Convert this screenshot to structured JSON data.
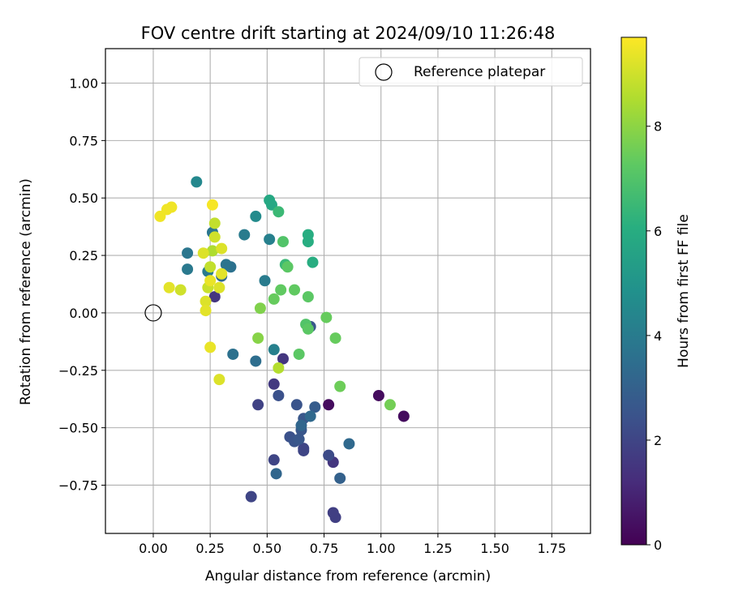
{
  "chart_data": {
    "type": "scatter",
    "title": "FOV centre drift starting at 2024/09/10 11:26:48",
    "xlabel": "Angular distance from reference (arcmin)",
    "ylabel": "Rotation from reference (arcmin)",
    "xlim": [
      -0.21,
      1.92
    ],
    "ylim": [
      -0.96,
      1.15
    ],
    "xticks": [
      0.0,
      0.25,
      0.5,
      0.75,
      1.0,
      1.25,
      1.5,
      1.75
    ],
    "xtick_labels": [
      "0.00",
      "0.25",
      "0.50",
      "0.75",
      "1.00",
      "1.25",
      "1.50",
      "1.75"
    ],
    "yticks": [
      -0.75,
      -0.5,
      -0.25,
      0.0,
      0.25,
      0.5,
      0.75,
      1.0
    ],
    "ytick_labels": [
      "−0.75",
      "−0.50",
      "−0.25",
      "0.00",
      "0.25",
      "0.50",
      "0.75",
      "1.00"
    ],
    "grid": true,
    "legend": {
      "placement": "top-right",
      "entries": [
        "Reference platepar"
      ]
    },
    "reference_point": {
      "name": "Reference platepar",
      "x": 0.0,
      "y": 0.0
    },
    "colorbar": {
      "label": "Hours from first FF file",
      "colormap": "viridis",
      "range": [
        0,
        9.7
      ],
      "ticks": [
        0,
        2,
        4,
        6,
        8
      ],
      "tick_labels": [
        "0",
        "2",
        "4",
        "6",
        "8"
      ]
    },
    "points": [
      {
        "x": 0.77,
        "y": -0.4,
        "c": 0.3
      },
      {
        "x": 0.99,
        "y": -0.36,
        "c": 0.3
      },
      {
        "x": 1.1,
        "y": -0.45,
        "c": 0.3
      },
      {
        "x": 0.79,
        "y": -0.65,
        "c": 1.5
      },
      {
        "x": 0.57,
        "y": -0.2,
        "c": 1.5
      },
      {
        "x": 0.27,
        "y": 0.07,
        "c": 1.5
      },
      {
        "x": 0.53,
        "y": -0.31,
        "c": 1.6
      },
      {
        "x": 0.8,
        "y": -0.89,
        "c": 1.8
      },
      {
        "x": 0.79,
        "y": -0.87,
        "c": 1.8
      },
      {
        "x": 0.46,
        "y": -0.4,
        "c": 1.9
      },
      {
        "x": 0.43,
        "y": -0.8,
        "c": 2.0
      },
      {
        "x": 0.53,
        "y": -0.64,
        "c": 2.0
      },
      {
        "x": 0.66,
        "y": -0.6,
        "c": 2.0
      },
      {
        "x": 0.66,
        "y": -0.59,
        "c": 2.0
      },
      {
        "x": 0.77,
        "y": -0.62,
        "c": 2.2
      },
      {
        "x": 0.55,
        "y": -0.36,
        "c": 2.4
      },
      {
        "x": 0.6,
        "y": -0.54,
        "c": 2.4
      },
      {
        "x": 0.62,
        "y": -0.56,
        "c": 2.5
      },
      {
        "x": 0.63,
        "y": -0.4,
        "c": 2.5
      },
      {
        "x": 0.64,
        "y": -0.55,
        "c": 2.6
      },
      {
        "x": 0.65,
        "y": -0.51,
        "c": 2.6
      },
      {
        "x": 0.66,
        "y": -0.46,
        "c": 2.6
      },
      {
        "x": 0.69,
        "y": -0.06,
        "c": 2.6
      },
      {
        "x": 0.71,
        "y": -0.41,
        "c": 2.8
      },
      {
        "x": 0.82,
        "y": -0.72,
        "c": 3.0
      },
      {
        "x": 0.54,
        "y": -0.7,
        "c": 3.2
      },
      {
        "x": 0.65,
        "y": -0.49,
        "c": 3.2
      },
      {
        "x": 0.69,
        "y": -0.45,
        "c": 3.3
      },
      {
        "x": 0.86,
        "y": -0.57,
        "c": 3.3
      },
      {
        "x": 0.3,
        "y": 0.16,
        "c": 3.3
      },
      {
        "x": 0.45,
        "y": -0.21,
        "c": 3.5
      },
      {
        "x": 0.35,
        "y": -0.18,
        "c": 3.6
      },
      {
        "x": 0.34,
        "y": 0.2,
        "c": 3.6
      },
      {
        "x": 0.32,
        "y": 0.21,
        "c": 3.7
      },
      {
        "x": 0.26,
        "y": 0.35,
        "c": 3.8
      },
      {
        "x": 0.15,
        "y": 0.26,
        "c": 3.8
      },
      {
        "x": 0.15,
        "y": 0.19,
        "c": 3.9
      },
      {
        "x": 0.24,
        "y": 0.18,
        "c": 4.0
      },
      {
        "x": 0.4,
        "y": 0.34,
        "c": 4.0
      },
      {
        "x": 0.49,
        "y": 0.14,
        "c": 4.0
      },
      {
        "x": 0.51,
        "y": 0.32,
        "c": 4.2
      },
      {
        "x": 0.53,
        "y": -0.16,
        "c": 4.2
      },
      {
        "x": 0.19,
        "y": 0.57,
        "c": 4.5
      },
      {
        "x": 0.45,
        "y": 0.42,
        "c": 4.6
      },
      {
        "x": 0.51,
        "y": 0.49,
        "c": 5.8
      },
      {
        "x": 0.52,
        "y": 0.47,
        "c": 5.8
      },
      {
        "x": 0.68,
        "y": 0.34,
        "c": 6.0
      },
      {
        "x": 0.68,
        "y": 0.31,
        "c": 6.0
      },
      {
        "x": 0.7,
        "y": 0.22,
        "c": 6.0
      },
      {
        "x": 0.55,
        "y": 0.44,
        "c": 6.5
      },
      {
        "x": 0.58,
        "y": 0.21,
        "c": 6.5
      },
      {
        "x": 0.57,
        "y": 0.31,
        "c": 7.0
      },
      {
        "x": 0.59,
        "y": 0.2,
        "c": 7.2
      },
      {
        "x": 0.64,
        "y": -0.18,
        "c": 7.2
      },
      {
        "x": 0.67,
        "y": -0.05,
        "c": 7.0
      },
      {
        "x": 0.68,
        "y": -0.07,
        "c": 7.2
      },
      {
        "x": 0.68,
        "y": 0.07,
        "c": 7.2
      },
      {
        "x": 0.56,
        "y": 0.1,
        "c": 7.3
      },
      {
        "x": 0.62,
        "y": 0.1,
        "c": 7.3
      },
      {
        "x": 0.53,
        "y": 0.06,
        "c": 7.4
      },
      {
        "x": 0.76,
        "y": -0.02,
        "c": 7.4
      },
      {
        "x": 0.8,
        "y": -0.11,
        "c": 7.4
      },
      {
        "x": 0.82,
        "y": -0.32,
        "c": 7.5
      },
      {
        "x": 1.04,
        "y": -0.4,
        "c": 7.6
      },
      {
        "x": 0.47,
        "y": 0.02,
        "c": 7.8
      },
      {
        "x": 0.46,
        "y": -0.11,
        "c": 7.9
      },
      {
        "x": 0.55,
        "y": -0.24,
        "c": 8.6
      },
      {
        "x": 0.29,
        "y": -0.29,
        "c": 9.2
      },
      {
        "x": 0.25,
        "y": -0.15,
        "c": 9.4
      },
      {
        "x": 0.27,
        "y": 0.39,
        "c": 8.8
      },
      {
        "x": 0.27,
        "y": 0.33,
        "c": 9.0
      },
      {
        "x": 0.26,
        "y": 0.27,
        "c": 8.5
      },
      {
        "x": 0.25,
        "y": 0.2,
        "c": 8.8
      },
      {
        "x": 0.3,
        "y": 0.28,
        "c": 9.2
      },
      {
        "x": 0.22,
        "y": 0.26,
        "c": 9.2
      },
      {
        "x": 0.24,
        "y": 0.11,
        "c": 8.9
      },
      {
        "x": 0.29,
        "y": 0.11,
        "c": 9.2
      },
      {
        "x": 0.23,
        "y": 0.05,
        "c": 9.2
      },
      {
        "x": 0.23,
        "y": 0.01,
        "c": 9.3
      },
      {
        "x": 0.25,
        "y": 0.14,
        "c": 9.4
      },
      {
        "x": 0.3,
        "y": 0.17,
        "c": 9.3
      },
      {
        "x": 0.12,
        "y": 0.1,
        "c": 9.0
      },
      {
        "x": 0.07,
        "y": 0.11,
        "c": 9.3
      },
      {
        "x": 0.03,
        "y": 0.42,
        "c": 9.5
      },
      {
        "x": 0.06,
        "y": 0.45,
        "c": 9.5
      },
      {
        "x": 0.08,
        "y": 0.46,
        "c": 9.5
      },
      {
        "x": 0.26,
        "y": 0.47,
        "c": 9.6
      }
    ]
  }
}
